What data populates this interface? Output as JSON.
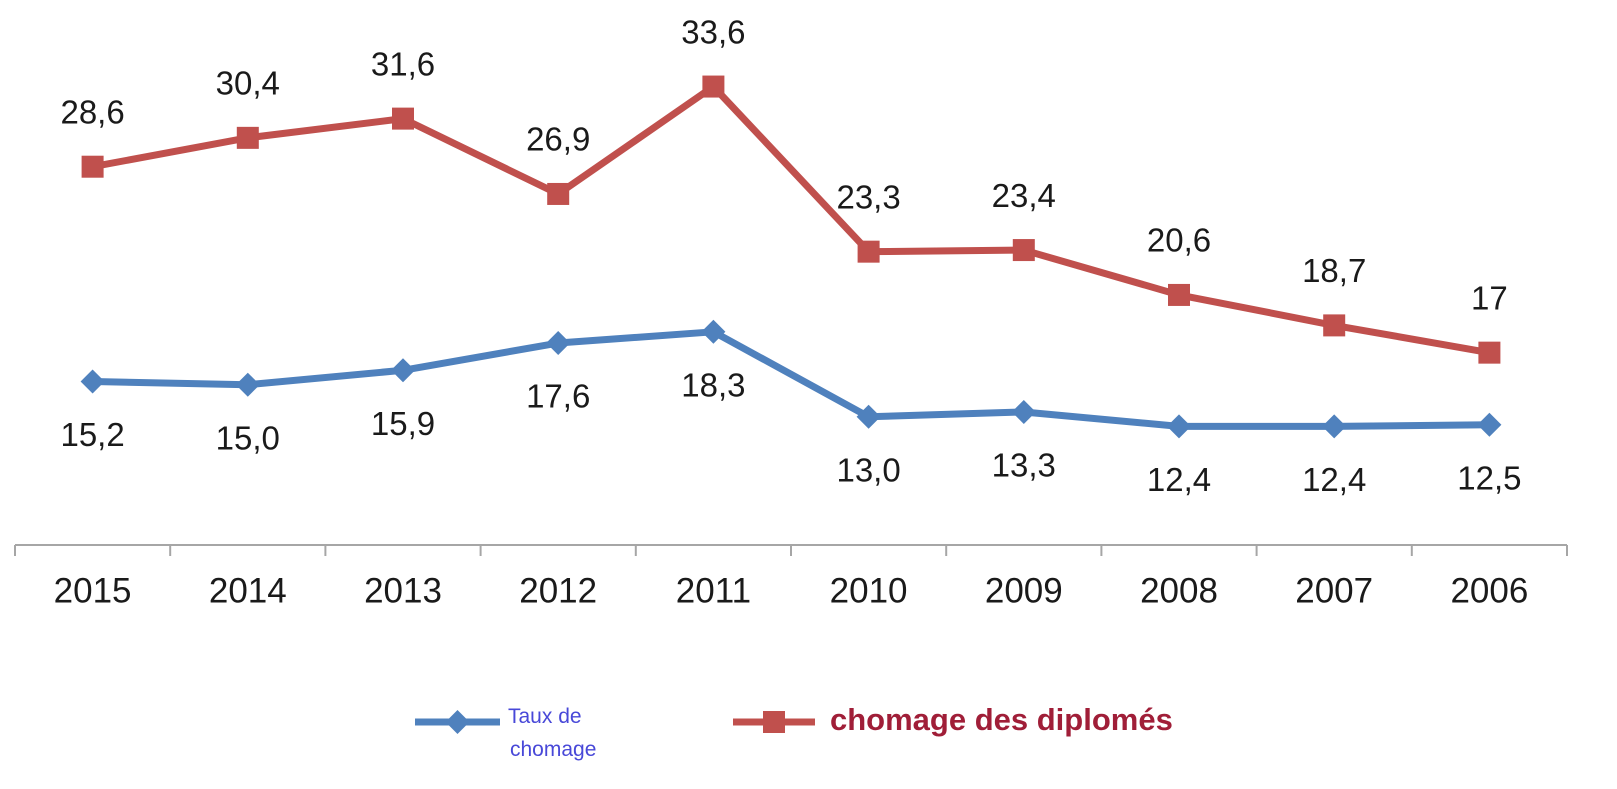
{
  "chart_data": {
    "type": "line",
    "categories": [
      "2015",
      "2014",
      "2013",
      "2012",
      "2011",
      "2010",
      "2009",
      "2008",
      "2007",
      "2006"
    ],
    "series": [
      {
        "name": "Taux de chomage",
        "color": "#4f81bd",
        "marker": "diamond",
        "values": [
          15.2,
          15.0,
          15.9,
          17.6,
          18.3,
          13.0,
          13.3,
          12.4,
          12.4,
          12.5
        ],
        "value_labels": [
          "15,2",
          "15,0",
          "15,9",
          "17,6",
          "18,3",
          "13,0",
          "13,3",
          "12,4",
          "12,4",
          "12,5"
        ]
      },
      {
        "name": "chomage des diplomés",
        "color": "#c0504d",
        "marker": "square",
        "values": [
          28.6,
          30.4,
          31.6,
          26.9,
          33.6,
          23.3,
          23.4,
          20.6,
          18.7,
          17
        ],
        "value_labels": [
          "28,6",
          "30,4",
          "31,6",
          "26,9",
          "33,6",
          "23,3",
          "23,4",
          "20,6",
          "18,7",
          "17"
        ]
      }
    ],
    "ylim": [
      5,
      39
    ]
  }
}
